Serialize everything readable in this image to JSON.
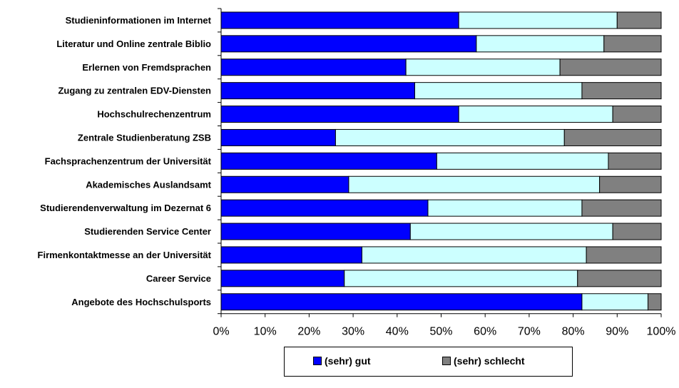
{
  "chart_data": {
    "type": "bar",
    "orientation": "horizontal",
    "stacked": true,
    "percent": true,
    "categories": [
      "Studieninformationen im Internet",
      "Literatur und Online zentrale Biblio",
      "Erlernen von Fremdsprachen",
      "Zugang zu zentralen EDV-Diensten",
      "Hochschulrechenzentrum",
      "Zentrale Studienberatung ZSB",
      "Fachsprachenzentrum der Universität",
      "Akademisches Auslandsamt",
      "Studierendenverwaltung im Dezernat 6",
      "Studierenden Service Center",
      "Firmenkontaktmesse an der Universität",
      "Career Service",
      "Angebote des Hochschulsports"
    ],
    "series": [
      {
        "name": "(sehr) gut",
        "color": "#0000ff",
        "values": [
          54,
          58,
          42,
          44,
          54,
          26,
          49,
          29,
          47,
          43,
          32,
          28,
          82
        ]
      },
      {
        "name": "",
        "color": "#ccffff",
        "values": [
          36,
          29,
          35,
          38,
          35,
          52,
          39,
          57,
          35,
          46,
          51,
          53,
          15
        ]
      },
      {
        "name": "(sehr) schlecht",
        "color": "#808080",
        "values": [
          10,
          13,
          23,
          18,
          11,
          22,
          12,
          14,
          18,
          11,
          17,
          19,
          3
        ]
      }
    ],
    "xticks": [
      "0%",
      "10%",
      "20%",
      "30%",
      "40%",
      "50%",
      "60%",
      "70%",
      "80%",
      "90%",
      "100%"
    ],
    "xlim": [
      0,
      100
    ],
    "grid": false,
    "legend_position": "bottom"
  },
  "legend": {
    "items": [
      {
        "label": "(sehr) gut",
        "color": "#0000ff"
      },
      {
        "label": "(sehr) schlecht",
        "color": "#808080"
      }
    ]
  }
}
